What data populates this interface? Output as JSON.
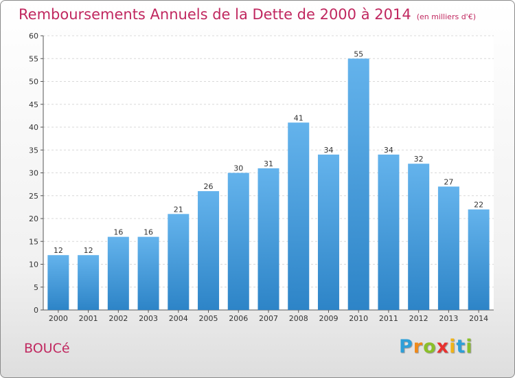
{
  "header": {
    "title": "Remboursements Annuels de la Dette de 2000 à 2014",
    "unit": "(en milliers d'€)"
  },
  "footer": {
    "commune": "BOUCé",
    "logo_letters": [
      {
        "char": "P",
        "color": "#2e9fd8"
      },
      {
        "char": "r",
        "color": "#f08a1a"
      },
      {
        "char": "o",
        "color": "#8bbf2a"
      },
      {
        "char": "x",
        "color": "#e8312f"
      },
      {
        "char": "i",
        "color": "#f0b41a"
      },
      {
        "char": "t",
        "color": "#2e9fd8"
      },
      {
        "char": "i",
        "color": "#8bbf2a"
      }
    ]
  },
  "chart_data": {
    "type": "bar",
    "categories": [
      "2000",
      "2001",
      "2002",
      "2003",
      "2004",
      "2005",
      "2006",
      "2007",
      "2008",
      "2009",
      "2010",
      "2011",
      "2012",
      "2013",
      "2014"
    ],
    "values": [
      12,
      12,
      16,
      16,
      21,
      26,
      30,
      31,
      41,
      34,
      55,
      34,
      32,
      27,
      22
    ],
    "ylim": [
      0,
      60
    ],
    "yticks": [
      0,
      5,
      10,
      15,
      20,
      25,
      30,
      35,
      40,
      45,
      50,
      55,
      60
    ],
    "grid": true,
    "bar_color_top": "#64b3ec",
    "bar_color_bottom": "#2d84c7"
  }
}
